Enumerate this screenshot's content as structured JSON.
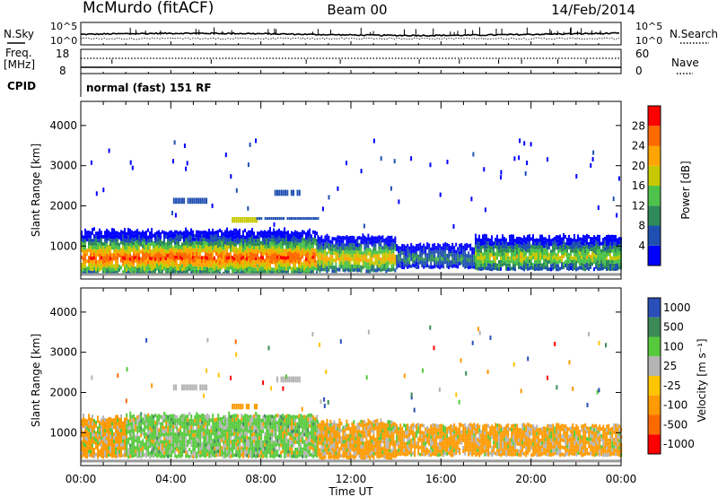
{
  "header": {
    "station": "McMurdo (fitACF)",
    "beam": "Beam 00",
    "date": "14/Feb/2014"
  },
  "top_panels": {
    "nsky_label": "N.Sky",
    "nsearch_label": "N.Search",
    "noise_ticks": [
      "10^5",
      "10^0"
    ],
    "freq_label": "Freq.",
    "freq_unit": "[MHz]",
    "freq_ticks": [
      "18",
      "8"
    ],
    "nave_label": "Nave",
    "nave_ticks": [
      "60",
      "0"
    ],
    "cpid_label": "CPID",
    "cpid_text": "normal (fast) 151 RF"
  },
  "colors": {
    "power": [
      "#0000ff",
      "#1f4fb0",
      "#2e8a5a",
      "#4ec24a",
      "#c8c800",
      "#ffa500",
      "#ff6a00",
      "#ff0000"
    ],
    "velocity": [
      "#2a4fb8",
      "#3c8a57",
      "#57c93d",
      "#b4b4b4",
      "#ffc500",
      "#ff9a00",
      "#ff6a00",
      "#ff0000"
    ]
  },
  "chart_data": [
    {
      "type": "heatmap",
      "name": "power",
      "ylabel": "Slant Range [km]",
      "ylim": [
        180,
        4600
      ],
      "yticks": [
        1000,
        2000,
        3000,
        4000
      ],
      "xlim": [
        0,
        24
      ],
      "colorbar_label": "Power [dB]",
      "colorbar_ticks": [
        "4",
        "8",
        "12",
        "16",
        "20",
        "24",
        "28"
      ],
      "colorbar_range": [
        0,
        32
      ],
      "regions": [
        {
          "t0": 0.0,
          "t1": 10.5,
          "r0": 300,
          "r1": 1350,
          "peak": 28
        },
        {
          "t0": 10.5,
          "t1": 14.0,
          "r0": 350,
          "r1": 1200,
          "peak": 22
        },
        {
          "t0": 14.0,
          "t1": 17.5,
          "r0": 450,
          "r1": 1000,
          "peak": 10
        },
        {
          "t0": 17.5,
          "t1": 24.0,
          "r0": 400,
          "r1": 1200,
          "peak": 18
        }
      ],
      "patches": [
        {
          "t0": 4.1,
          "t1": 5.6,
          "r0": 2050,
          "r1": 2200,
          "value": 4
        },
        {
          "t0": 6.7,
          "t1": 7.8,
          "r0": 1580,
          "r1": 1720,
          "value": 18
        },
        {
          "t0": 7.8,
          "t1": 10.5,
          "r0": 1650,
          "r1": 1720,
          "value": 4
        },
        {
          "t0": 8.6,
          "t1": 9.7,
          "r0": 2250,
          "r1": 2400,
          "value": 4
        }
      ]
    },
    {
      "type": "heatmap",
      "name": "velocity",
      "ylabel": "Slant Range [km]",
      "xlabel": "Time UT",
      "ylim": [
        180,
        4600
      ],
      "yticks": [
        1000,
        2000,
        3000,
        4000
      ],
      "xlim": [
        0,
        24
      ],
      "xticks": [
        "00:00",
        "04:00",
        "08:00",
        "12:00",
        "16:00",
        "20:00",
        "00:00"
      ],
      "colorbar_label": "Velocity [m s⁻¹]",
      "colorbar_ticks": [
        "1000",
        "500",
        "100",
        "25",
        "-25",
        "-100",
        "-500",
        "-1000"
      ],
      "regions": [
        {
          "t0": 0.0,
          "t1": 2.0,
          "r0": 380,
          "r1": 1350,
          "value": -100
        },
        {
          "t0": 2.0,
          "t1": 10.5,
          "r0": 380,
          "r1": 1400,
          "value": 100
        },
        {
          "t0": 10.5,
          "t1": 14.0,
          "r0": 350,
          "r1": 1250,
          "value": -100
        },
        {
          "t0": 14.0,
          "t1": 24.0,
          "r0": 420,
          "r1": 1150,
          "value": -100
        }
      ],
      "patches": [
        {
          "t0": 4.1,
          "t1": 5.6,
          "r0": 2050,
          "r1": 2200,
          "value": 25
        },
        {
          "t0": 6.7,
          "t1": 7.8,
          "r0": 1580,
          "r1": 1720,
          "value": -100
        },
        {
          "t0": 8.6,
          "t1": 9.7,
          "r0": 2250,
          "r1": 2400,
          "value": 25
        }
      ]
    }
  ]
}
